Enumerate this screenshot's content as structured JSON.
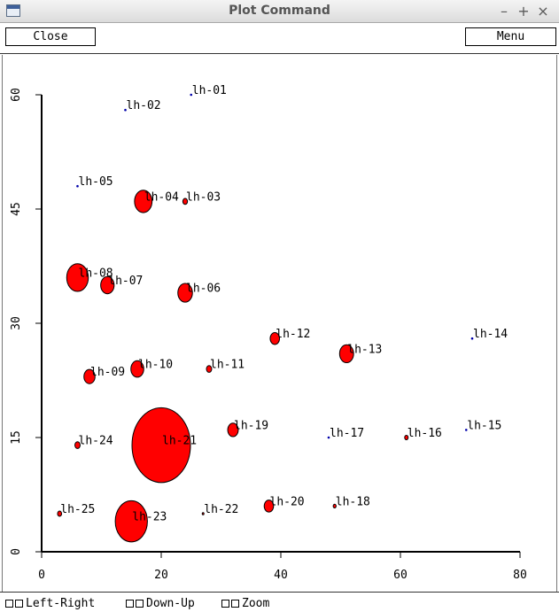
{
  "window": {
    "title": "Plot Command",
    "minimize": "–",
    "maximize": "+",
    "close": "×"
  },
  "toolbar": {
    "close_label": "Close",
    "menu_label": "Menu"
  },
  "bottom": {
    "options": [
      "Left-Right",
      "Down-Up",
      "Zoom"
    ]
  },
  "colors": {
    "marker": "#ff0000",
    "marker_stroke": "#000000",
    "axis": "#000000",
    "dot": "#0000aa"
  },
  "chart_data": {
    "type": "scatter",
    "xlim": [
      0,
      80
    ],
    "ylim": [
      0,
      60
    ],
    "xticks": [
      0,
      20,
      40,
      60,
      80
    ],
    "yticks": [
      0,
      15,
      30,
      45,
      60
    ],
    "grid": false,
    "points": [
      {
        "label": "lh-01",
        "x": 25,
        "y": 60,
        "size": 0.2
      },
      {
        "label": "lh-02",
        "x": 14,
        "y": 58,
        "size": 0.2
      },
      {
        "label": "lh-03",
        "x": 24,
        "y": 46,
        "size": 0.8
      },
      {
        "label": "lh-04",
        "x": 17,
        "y": 46,
        "size": 3
      },
      {
        "label": "lh-05",
        "x": 6,
        "y": 48,
        "size": 0.2
      },
      {
        "label": "lh-06",
        "x": 24,
        "y": 34,
        "size": 2.5
      },
      {
        "label": "lh-07",
        "x": 11,
        "y": 35,
        "size": 2.3
      },
      {
        "label": "lh-08",
        "x": 6,
        "y": 36,
        "size": 3.7
      },
      {
        "label": "lh-09",
        "x": 8,
        "y": 23,
        "size": 1.9
      },
      {
        "label": "lh-10",
        "x": 16,
        "y": 24,
        "size": 2.2
      },
      {
        "label": "lh-11",
        "x": 28,
        "y": 24,
        "size": 0.9
      },
      {
        "label": "lh-12",
        "x": 39,
        "y": 28,
        "size": 1.6
      },
      {
        "label": "lh-13",
        "x": 51,
        "y": 26,
        "size": 2.4
      },
      {
        "label": "lh-14",
        "x": 72,
        "y": 28,
        "size": 0.2
      },
      {
        "label": "lh-15",
        "x": 71,
        "y": 16,
        "size": 0.2
      },
      {
        "label": "lh-16",
        "x": 61,
        "y": 15,
        "size": 0.6
      },
      {
        "label": "lh-17",
        "x": 48,
        "y": 15,
        "size": 0.2
      },
      {
        "label": "lh-18",
        "x": 49,
        "y": 6,
        "size": 0.5
      },
      {
        "label": "lh-19",
        "x": 32,
        "y": 16,
        "size": 1.8
      },
      {
        "label": "lh-20",
        "x": 38,
        "y": 6,
        "size": 1.6
      },
      {
        "label": "lh-21",
        "x": 20,
        "y": 14,
        "size": 10
      },
      {
        "label": "lh-22",
        "x": 27,
        "y": 5,
        "size": 0.3
      },
      {
        "label": "lh-23",
        "x": 15,
        "y": 4,
        "size": 5.5
      },
      {
        "label": "lh-24",
        "x": 6,
        "y": 14,
        "size": 0.9
      },
      {
        "label": "lh-25",
        "x": 3,
        "y": 5,
        "size": 0.7
      }
    ]
  }
}
